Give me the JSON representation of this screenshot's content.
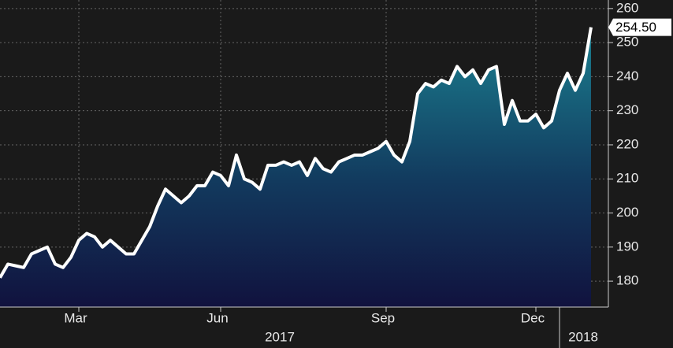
{
  "chart_data": {
    "type": "area",
    "categories": [
      null,
      null,
      null,
      null,
      null,
      null,
      null,
      null,
      null,
      null,
      "Mar",
      null,
      null,
      null,
      null,
      null,
      null,
      null,
      null,
      null,
      null,
      null,
      null,
      null,
      null,
      null,
      null,
      null,
      "Jun",
      null,
      null,
      null,
      null,
      null,
      null,
      null,
      null,
      null,
      null,
      null,
      null,
      null,
      null,
      null,
      null,
      null,
      null,
      null,
      null,
      "Sep",
      null,
      null,
      null,
      null,
      null,
      null,
      null,
      null,
      null,
      null,
      null,
      null,
      null,
      null,
      null,
      null,
      null,
      null,
      "Dec",
      null,
      null,
      null,
      null,
      null,
      null,
      null
    ],
    "values": [
      181,
      185,
      184.5,
      184,
      188,
      189,
      190,
      185,
      184,
      187,
      192,
      194,
      193,
      190,
      192,
      190,
      188,
      188,
      192,
      196,
      202,
      207,
      205,
      203,
      205,
      208,
      208,
      212,
      211,
      208,
      217,
      210,
      209,
      207,
      214,
      214,
      215,
      214,
      215,
      211,
      216,
      213,
      212,
      215,
      216,
      217,
      217,
      218,
      219,
      221,
      217,
      215,
      221,
      235,
      238,
      237,
      239,
      238,
      243,
      240,
      242,
      238,
      242,
      243,
      226,
      233,
      227,
      227,
      229,
      225,
      227,
      236,
      241,
      236,
      241,
      254.5
    ],
    "value_labels": [
      null,
      null,
      null,
      null,
      null,
      null,
      null,
      null,
      null,
      null,
      null,
      null,
      null,
      null,
      null,
      null,
      null,
      null,
      null,
      null,
      null,
      null,
      null,
      null,
      null,
      null,
      null,
      null,
      null,
      null,
      null,
      null,
      null,
      null,
      null,
      null,
      null,
      null,
      null,
      null,
      null,
      null,
      null,
      null,
      null,
      null,
      null,
      null,
      null,
      null,
      null,
      null,
      null,
      null,
      null,
      null,
      null,
      null,
      null,
      null,
      null,
      null,
      null,
      null,
      null,
      null,
      null,
      null,
      null,
      null,
      null,
      null,
      null,
      null,
      null,
      "254.50"
    ],
    "years": [
      "2017",
      "2018"
    ],
    "line_color": "#ffffff",
    "ylim": [
      172.4,
      262.5
    ],
    "yticks": [
      180,
      190,
      200,
      210,
      220,
      230,
      240,
      250,
      260
    ],
    "grid": true
  }
}
